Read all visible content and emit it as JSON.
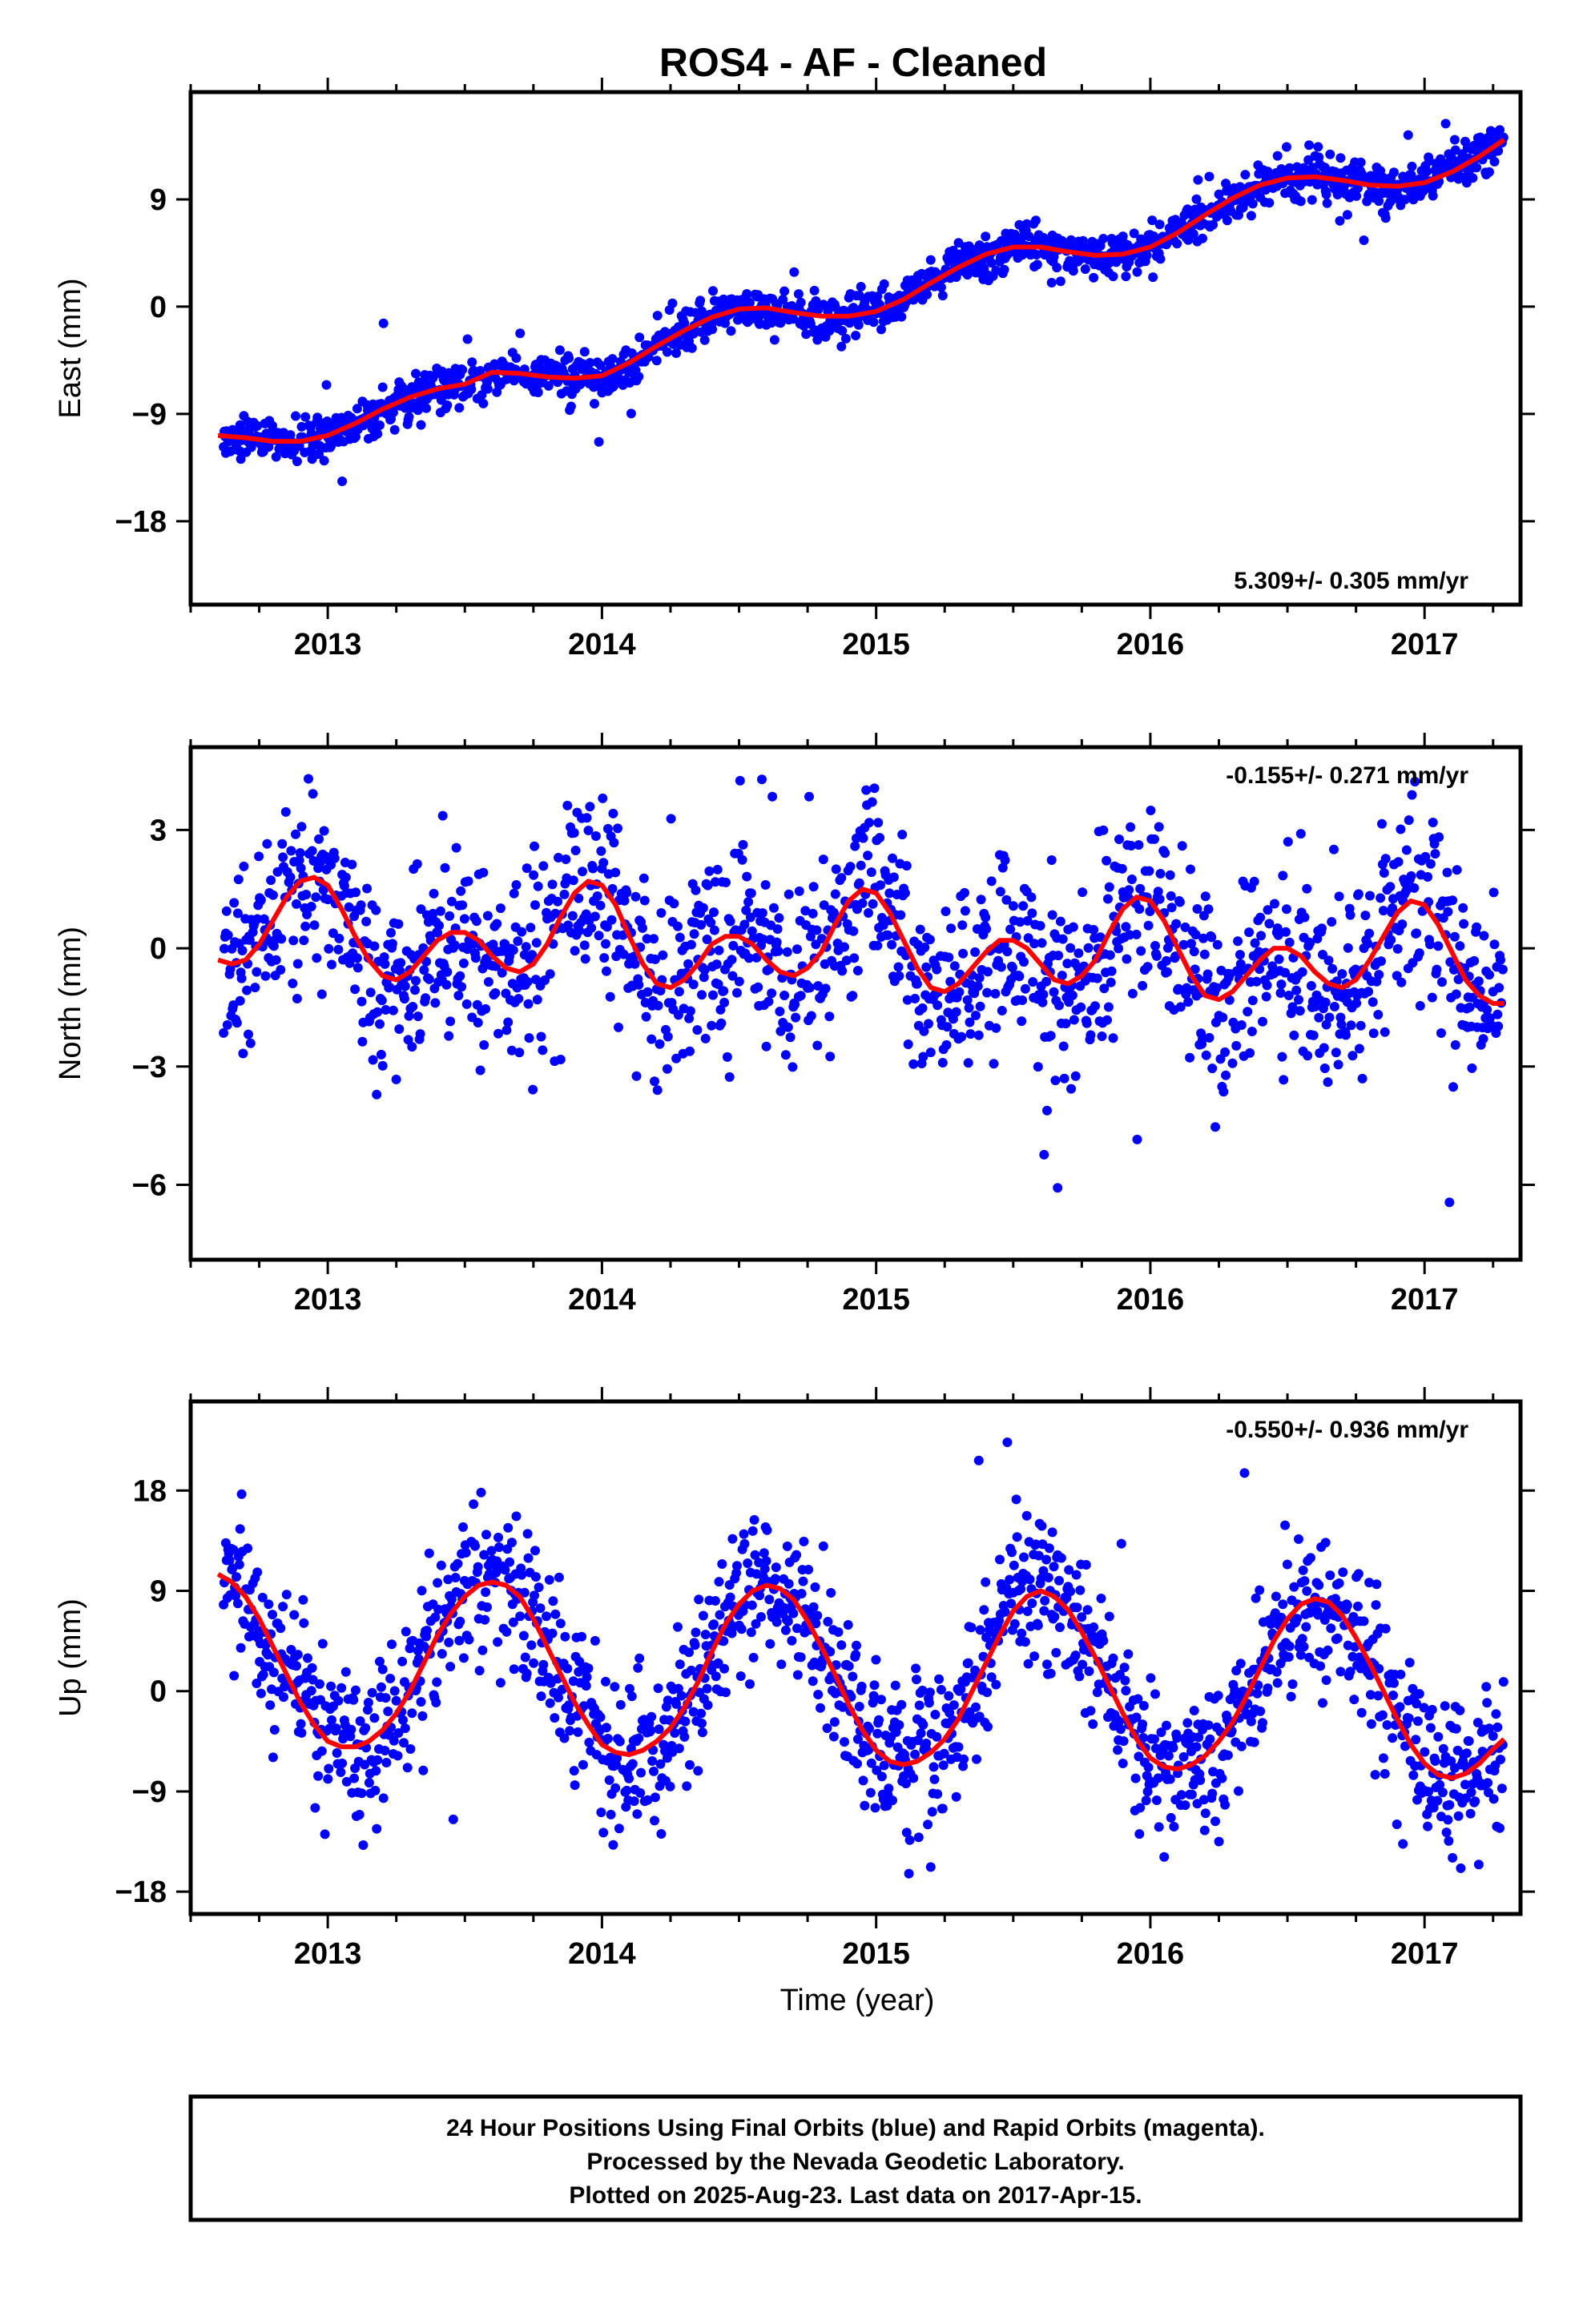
{
  "title": "ROS4  - AF - Cleaned",
  "x_axis_title": "Time (year)",
  "footer_lines": [
    "24 Hour Positions Using Final Orbits (blue) and Rapid Orbits (magenta).",
    "Processed by the Nevada Geodetic Laboratory.",
    "Plotted on 2025-Aug-23. Last data on 2017-Apr-15."
  ],
  "colors": {
    "points": "#0000ff",
    "fit": "#ff0000",
    "frame": "#000000"
  },
  "chart_data": [
    {
      "type": "scatter",
      "name": "east",
      "ylabel": "East (mm)",
      "rate_label": "5.309+/- 0.305 mm/yr",
      "xlim": [
        2012.5,
        2017.35
      ],
      "ylim": [
        -25,
        18
      ],
      "yticks": [
        -18,
        -9,
        0,
        9
      ],
      "xticks": [
        2013,
        2014,
        2015,
        2016,
        2017
      ],
      "fit": [
        [
          2012.6,
          -10.8
        ],
        [
          2012.7,
          -11.0
        ],
        [
          2012.8,
          -11.3
        ],
        [
          2012.9,
          -11.3
        ],
        [
          2013.0,
          -10.8
        ],
        [
          2013.1,
          -9.8
        ],
        [
          2013.2,
          -8.6
        ],
        [
          2013.3,
          -7.6
        ],
        [
          2013.4,
          -6.9
        ],
        [
          2013.5,
          -6.5
        ],
        [
          2013.6,
          -5.5
        ],
        [
          2013.7,
          -5.6
        ],
        [
          2013.8,
          -5.9
        ],
        [
          2013.9,
          -6.0
        ],
        [
          2014.0,
          -5.8
        ],
        [
          2014.1,
          -4.7
        ],
        [
          2014.2,
          -3.3
        ],
        [
          2014.3,
          -2.0
        ],
        [
          2014.4,
          -0.9
        ],
        [
          2014.5,
          -0.2
        ],
        [
          2014.6,
          -0.1
        ],
        [
          2014.7,
          -0.5
        ],
        [
          2014.8,
          -0.8
        ],
        [
          2014.9,
          -0.8
        ],
        [
          2015.0,
          -0.4
        ],
        [
          2015.1,
          0.6
        ],
        [
          2015.2,
          2.0
        ],
        [
          2015.3,
          3.3
        ],
        [
          2015.4,
          4.4
        ],
        [
          2015.5,
          5.0
        ],
        [
          2015.6,
          5.0
        ],
        [
          2015.7,
          4.6
        ],
        [
          2015.8,
          4.3
        ],
        [
          2015.9,
          4.4
        ],
        [
          2016.0,
          5.0
        ],
        [
          2016.1,
          6.2
        ],
        [
          2016.2,
          7.7
        ],
        [
          2016.3,
          9.1
        ],
        [
          2016.4,
          10.2
        ],
        [
          2016.5,
          10.8
        ],
        [
          2016.6,
          10.9
        ],
        [
          2016.7,
          10.6
        ],
        [
          2016.8,
          10.2
        ],
        [
          2016.9,
          10.1
        ],
        [
          2017.0,
          10.4
        ],
        [
          2017.1,
          11.3
        ],
        [
          2017.2,
          12.6
        ],
        [
          2017.29,
          14.0
        ]
      ]
    },
    {
      "type": "scatter",
      "name": "north",
      "ylabel": "North (mm)",
      "rate_label": "-0.155+/- 0.271 mm/yr",
      "xlim": [
        2012.5,
        2017.35
      ],
      "ylim": [
        -7.9,
        5.1
      ],
      "yticks": [
        -6,
        -3,
        0,
        3
      ],
      "xticks": [
        2013,
        2014,
        2015,
        2016,
        2017
      ],
      "fit": [
        [
          2012.6,
          -0.3
        ],
        [
          2012.65,
          -0.4
        ],
        [
          2012.7,
          -0.3
        ],
        [
          2012.75,
          0.1
        ],
        [
          2012.8,
          0.7
        ],
        [
          2012.85,
          1.3
        ],
        [
          2012.9,
          1.7
        ],
        [
          2012.95,
          1.8
        ],
        [
          2013.0,
          1.6
        ],
        [
          2013.05,
          1.0
        ],
        [
          2013.1,
          0.3
        ],
        [
          2013.15,
          -0.3
        ],
        [
          2013.2,
          -0.7
        ],
        [
          2013.25,
          -0.8
        ],
        [
          2013.3,
          -0.6
        ],
        [
          2013.35,
          -0.2
        ],
        [
          2013.4,
          0.2
        ],
        [
          2013.45,
          0.4
        ],
        [
          2013.5,
          0.4
        ],
        [
          2013.55,
          0.2
        ],
        [
          2013.6,
          -0.2
        ],
        [
          2013.65,
          -0.5
        ],
        [
          2013.7,
          -0.6
        ],
        [
          2013.75,
          -0.4
        ],
        [
          2013.8,
          0.1
        ],
        [
          2013.85,
          0.8
        ],
        [
          2013.9,
          1.4
        ],
        [
          2013.95,
          1.7
        ],
        [
          2014.0,
          1.6
        ],
        [
          2014.05,
          1.1
        ],
        [
          2014.1,
          0.3
        ],
        [
          2014.15,
          -0.4
        ],
        [
          2014.2,
          -0.9
        ],
        [
          2014.25,
          -1.0
        ],
        [
          2014.3,
          -0.8
        ],
        [
          2014.35,
          -0.4
        ],
        [
          2014.4,
          0.1
        ],
        [
          2014.45,
          0.3
        ],
        [
          2014.5,
          0.3
        ],
        [
          2014.55,
          0.1
        ],
        [
          2014.6,
          -0.3
        ],
        [
          2014.65,
          -0.6
        ],
        [
          2014.7,
          -0.7
        ],
        [
          2014.75,
          -0.5
        ],
        [
          2014.8,
          -0.1
        ],
        [
          2014.85,
          0.6
        ],
        [
          2014.9,
          1.2
        ],
        [
          2014.95,
          1.5
        ],
        [
          2015.0,
          1.4
        ],
        [
          2015.05,
          0.9
        ],
        [
          2015.1,
          0.2
        ],
        [
          2015.15,
          -0.5
        ],
        [
          2015.2,
          -1.0
        ],
        [
          2015.25,
          -1.1
        ],
        [
          2015.3,
          -0.9
        ],
        [
          2015.35,
          -0.5
        ],
        [
          2015.4,
          -0.1
        ],
        [
          2015.45,
          0.2
        ],
        [
          2015.5,
          0.2
        ],
        [
          2015.55,
          0.0
        ],
        [
          2015.6,
          -0.4
        ],
        [
          2015.65,
          -0.8
        ],
        [
          2015.7,
          -0.9
        ],
        [
          2015.75,
          -0.7
        ],
        [
          2015.8,
          -0.3
        ],
        [
          2015.85,
          0.4
        ],
        [
          2015.9,
          1.0
        ],
        [
          2015.95,
          1.3
        ],
        [
          2016.0,
          1.2
        ],
        [
          2016.05,
          0.7
        ],
        [
          2016.1,
          0.0
        ],
        [
          2016.15,
          -0.7
        ],
        [
          2016.2,
          -1.2
        ],
        [
          2016.25,
          -1.3
        ],
        [
          2016.3,
          -1.1
        ],
        [
          2016.35,
          -0.7
        ],
        [
          2016.4,
          -0.3
        ],
        [
          2016.45,
          0.0
        ],
        [
          2016.5,
          0.0
        ],
        [
          2016.55,
          -0.2
        ],
        [
          2016.6,
          -0.6
        ],
        [
          2016.65,
          -0.9
        ],
        [
          2016.7,
          -1.0
        ],
        [
          2016.75,
          -0.8
        ],
        [
          2016.8,
          -0.3
        ],
        [
          2016.85,
          0.3
        ],
        [
          2016.9,
          0.9
        ],
        [
          2016.95,
          1.2
        ],
        [
          2017.0,
          1.1
        ],
        [
          2017.05,
          0.6
        ],
        [
          2017.1,
          -0.1
        ],
        [
          2017.15,
          -0.8
        ],
        [
          2017.2,
          -1.2
        ],
        [
          2017.25,
          -1.4
        ],
        [
          2017.29,
          -1.4
        ]
      ]
    },
    {
      "type": "scatter",
      "name": "up",
      "ylabel": "Up (mm)",
      "rate_label": "-0.550+/- 0.936 mm/yr",
      "xlim": [
        2012.5,
        2017.35
      ],
      "ylim": [
        -20,
        26
      ],
      "yticks": [
        -18,
        -9,
        0,
        9,
        18
      ],
      "xticks": [
        2013,
        2014,
        2015,
        2016,
        2017
      ],
      "fit": [
        [
          2012.6,
          10.5
        ],
        [
          2012.65,
          9.8
        ],
        [
          2012.7,
          8.5
        ],
        [
          2012.75,
          6.5
        ],
        [
          2012.8,
          4.0
        ],
        [
          2012.85,
          1.5
        ],
        [
          2012.9,
          -1.0
        ],
        [
          2012.95,
          -3.0
        ],
        [
          2013.0,
          -4.5
        ],
        [
          2013.05,
          -5.0
        ],
        [
          2013.1,
          -5.0
        ],
        [
          2013.15,
          -4.5
        ],
        [
          2013.2,
          -3.5
        ],
        [
          2013.25,
          -2.0
        ],
        [
          2013.3,
          0.0
        ],
        [
          2013.35,
          2.5
        ],
        [
          2013.4,
          5.0
        ],
        [
          2013.45,
          7.0
        ],
        [
          2013.5,
          8.5
        ],
        [
          2013.55,
          9.5
        ],
        [
          2013.6,
          9.8
        ],
        [
          2013.65,
          9.5
        ],
        [
          2013.7,
          8.5
        ],
        [
          2013.75,
          6.5
        ],
        [
          2013.8,
          4.0
        ],
        [
          2013.85,
          1.5
        ],
        [
          2013.9,
          -1.0
        ],
        [
          2013.95,
          -3.0
        ],
        [
          2014.0,
          -4.8
        ],
        [
          2014.05,
          -5.5
        ],
        [
          2014.1,
          -5.7
        ],
        [
          2014.15,
          -5.3
        ],
        [
          2014.2,
          -4.5
        ],
        [
          2014.25,
          -3.3
        ],
        [
          2014.3,
          -1.5
        ],
        [
          2014.35,
          0.8
        ],
        [
          2014.4,
          3.5
        ],
        [
          2014.45,
          6.0
        ],
        [
          2014.5,
          7.8
        ],
        [
          2014.55,
          9.0
        ],
        [
          2014.6,
          9.5
        ],
        [
          2014.65,
          9.2
        ],
        [
          2014.7,
          8.2
        ],
        [
          2014.75,
          6.3
        ],
        [
          2014.8,
          4.0
        ],
        [
          2014.85,
          1.5
        ],
        [
          2014.9,
          -1.2
        ],
        [
          2014.95,
          -3.5
        ],
        [
          2015.0,
          -5.3
        ],
        [
          2015.05,
          -6.3
        ],
        [
          2015.1,
          -6.6
        ],
        [
          2015.15,
          -6.3
        ],
        [
          2015.2,
          -5.5
        ],
        [
          2015.25,
          -4.3
        ],
        [
          2015.3,
          -2.5
        ],
        [
          2015.35,
          0.0
        ],
        [
          2015.4,
          2.5
        ],
        [
          2015.45,
          5.0
        ],
        [
          2015.5,
          7.2
        ],
        [
          2015.55,
          8.5
        ],
        [
          2015.6,
          9.0
        ],
        [
          2015.65,
          8.5
        ],
        [
          2015.7,
          7.3
        ],
        [
          2015.75,
          5.3
        ],
        [
          2015.8,
          3.0
        ],
        [
          2015.85,
          0.5
        ],
        [
          2015.9,
          -2.0
        ],
        [
          2015.95,
          -4.3
        ],
        [
          2016.0,
          -6.0
        ],
        [
          2016.05,
          -6.8
        ],
        [
          2016.1,
          -7.0
        ],
        [
          2016.15,
          -6.6
        ],
        [
          2016.2,
          -5.8
        ],
        [
          2016.25,
          -4.5
        ],
        [
          2016.3,
          -2.8
        ],
        [
          2016.35,
          -0.5
        ],
        [
          2016.4,
          2.0
        ],
        [
          2016.45,
          4.5
        ],
        [
          2016.5,
          6.5
        ],
        [
          2016.55,
          7.8
        ],
        [
          2016.6,
          8.3
        ],
        [
          2016.65,
          8.0
        ],
        [
          2016.7,
          6.8
        ],
        [
          2016.75,
          4.8
        ],
        [
          2016.8,
          2.5
        ],
        [
          2016.85,
          0.0
        ],
        [
          2016.9,
          -2.5
        ],
        [
          2016.95,
          -4.8
        ],
        [
          2017.0,
          -6.5
        ],
        [
          2017.05,
          -7.5
        ],
        [
          2017.1,
          -7.8
        ],
        [
          2017.15,
          -7.4
        ],
        [
          2017.2,
          -6.5
        ],
        [
          2017.25,
          -5.2
        ],
        [
          2017.29,
          -4.3
        ]
      ]
    }
  ]
}
